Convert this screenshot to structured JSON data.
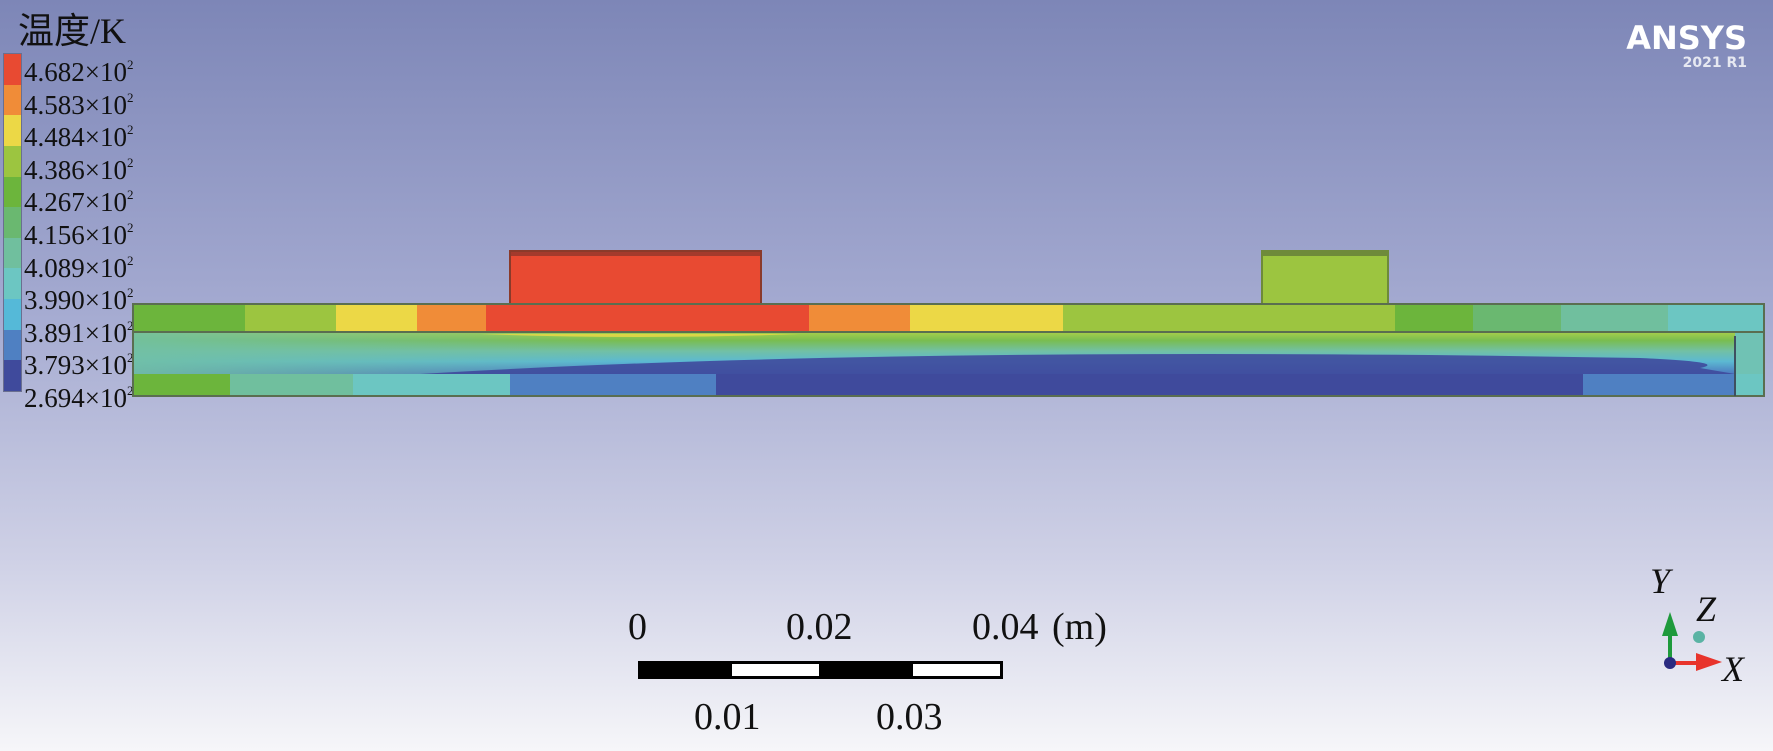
{
  "legend": {
    "title": "温度/K",
    "labels": [
      "4.682×10",
      "4.583×10",
      "4.484×10",
      "4.386×10",
      "4.267×10",
      "4.156×10",
      "4.089×10",
      "3.990×10",
      "3.891×10",
      "3.793×10",
      "2.694×10"
    ],
    "exponent": "2",
    "colors": [
      "#e84a32",
      "#f08c38",
      "#ecd846",
      "#9cc540",
      "#6cb53c",
      "#6ab870",
      "#70bf9e",
      "#6cc6c2",
      "#55b9d8",
      "#4f80c2",
      "#3f4a9c"
    ]
  },
  "scale_bar": {
    "top_labels": [
      "0",
      "0.02",
      "0.04"
    ],
    "unit": "(m)",
    "bottom_labels": [
      "0.01",
      "0.03"
    ]
  },
  "logo": {
    "brand": "ANSYS",
    "version": "2021 R1"
  },
  "triad": {
    "x": "X",
    "y": "Y",
    "z": "Z",
    "x_color": "#e8342c",
    "y_color": "#1e9a3c",
    "z_color": "#5ab3a4"
  }
}
